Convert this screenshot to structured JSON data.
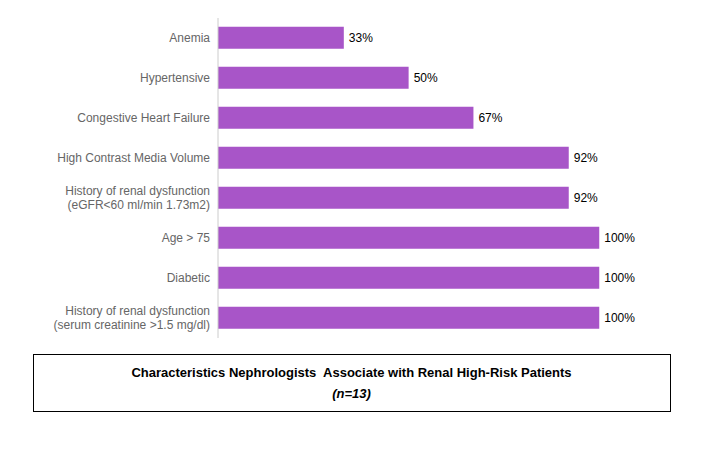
{
  "chart_data": {
    "type": "bar",
    "orientation": "horizontal",
    "title": "Characteristics Nephrologists  Associate with Renal High-Risk Patients",
    "subtitle": "(n=13)",
    "categories": [
      "History of renal dysfunction\n(serum creatinine >1.5 mg/dl)",
      "Diabetic",
      "Age > 75",
      "History of renal dysfunction\n(eGFR<60 ml/min 1.73m2)",
      "High Contrast Media Volume",
      "Congestive Heart Failure",
      "Hypertensive",
      "Anemia"
    ],
    "values": [
      100,
      100,
      100,
      92,
      92,
      67,
      50,
      33
    ],
    "value_labels": [
      "100%",
      "100%",
      "100%",
      "92%",
      "92%",
      "67%",
      "50%",
      "33%"
    ],
    "data_labels": true,
    "color": "#A855C8",
    "xlim": [
      0,
      112
    ],
    "tick_labels": "y",
    "grid": false
  }
}
